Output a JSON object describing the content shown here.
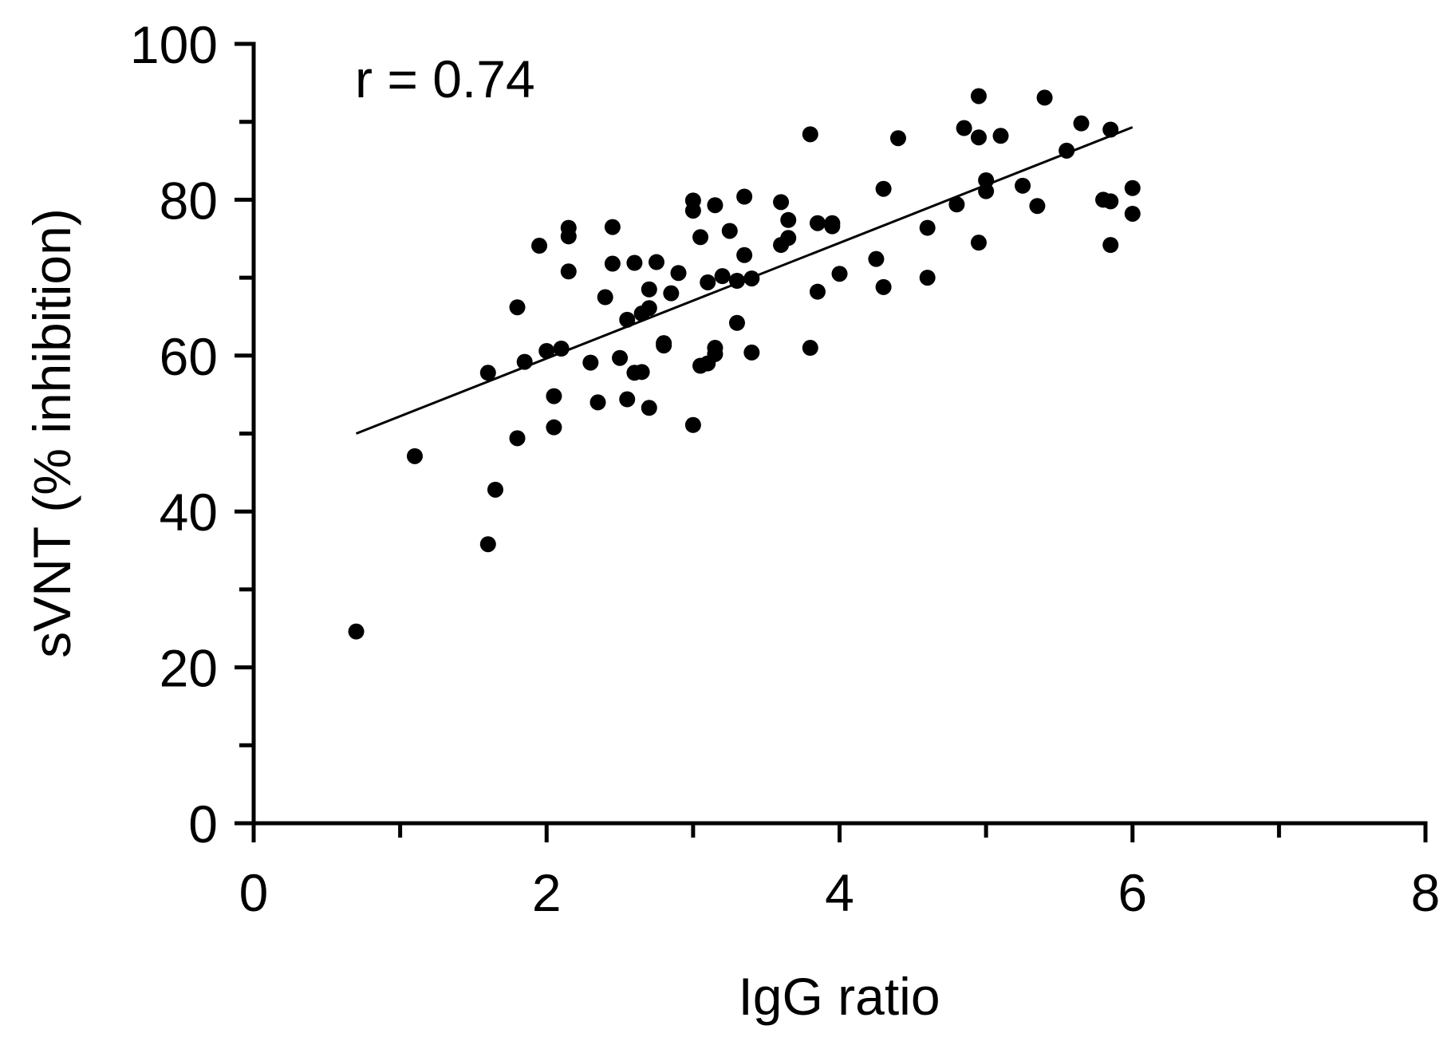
{
  "chart_data": {
    "type": "scatter",
    "title": "",
    "xlabel": "IgG ratio",
    "ylabel": "sVNT (% inhibition)",
    "xlim": [
      0,
      8
    ],
    "ylim": [
      0,
      100
    ],
    "x_ticks": [
      0,
      2,
      4,
      6,
      8
    ],
    "x_tick_labels": [
      "0",
      "2",
      "4",
      "6",
      "8"
    ],
    "x_minor_ticks": [
      1,
      3,
      5,
      7
    ],
    "y_ticks": [
      0,
      20,
      40,
      60,
      80,
      100
    ],
    "y_tick_labels": [
      "0",
      "20",
      "40",
      "60",
      "80",
      "100"
    ],
    "y_minor_ticks": [
      10,
      30,
      50,
      70,
      90
    ],
    "grid": false,
    "annotation": "r = 0.74",
    "fit_line": {
      "x": [
        0.7,
        6.0
      ],
      "y": [
        50,
        89.3
      ]
    },
    "series": [
      {
        "points": [
          [
            0.7,
            24.6
          ],
          [
            1.1,
            47.1
          ],
          [
            1.6,
            35.8
          ],
          [
            1.6,
            57.8
          ],
          [
            1.65,
            42.8
          ],
          [
            1.8,
            66.2
          ],
          [
            1.8,
            49.4
          ],
          [
            1.85,
            59.2
          ],
          [
            1.95,
            74.1
          ],
          [
            2.0,
            60.6
          ],
          [
            2.05,
            54.8
          ],
          [
            2.05,
            50.8
          ],
          [
            2.1,
            60.9
          ],
          [
            2.15,
            70.8
          ],
          [
            2.15,
            76.4
          ],
          [
            2.15,
            75.3
          ],
          [
            2.3,
            59.1
          ],
          [
            2.35,
            54.0
          ],
          [
            2.4,
            67.5
          ],
          [
            2.45,
            76.5
          ],
          [
            2.45,
            71.8
          ],
          [
            2.5,
            59.7
          ],
          [
            2.55,
            64.6
          ],
          [
            2.55,
            54.4
          ],
          [
            2.6,
            71.9
          ],
          [
            2.6,
            57.8
          ],
          [
            2.65,
            57.9
          ],
          [
            2.65,
            65.4
          ],
          [
            2.7,
            66.1
          ],
          [
            2.7,
            68.5
          ],
          [
            2.7,
            53.3
          ],
          [
            2.75,
            72.0
          ],
          [
            2.8,
            61.6
          ],
          [
            2.8,
            61.3
          ],
          [
            2.85,
            68.0
          ],
          [
            2.9,
            70.6
          ],
          [
            3.0,
            79.9
          ],
          [
            3.0,
            78.6
          ],
          [
            3.0,
            51.1
          ],
          [
            3.05,
            75.2
          ],
          [
            3.05,
            58.7
          ],
          [
            3.1,
            69.4
          ],
          [
            3.1,
            59.0
          ],
          [
            3.15,
            79.3
          ],
          [
            3.15,
            61.0
          ],
          [
            3.15,
            60.2
          ],
          [
            3.2,
            70.2
          ],
          [
            3.25,
            76.0
          ],
          [
            3.3,
            64.2
          ],
          [
            3.3,
            69.6
          ],
          [
            3.35,
            72.9
          ],
          [
            3.35,
            80.4
          ],
          [
            3.4,
            69.9
          ],
          [
            3.4,
            60.4
          ],
          [
            3.6,
            79.7
          ],
          [
            3.6,
            74.2
          ],
          [
            3.65,
            75.1
          ],
          [
            3.65,
            77.4
          ],
          [
            3.8,
            88.4
          ],
          [
            3.8,
            61.0
          ],
          [
            3.85,
            68.2
          ],
          [
            3.85,
            77.0
          ],
          [
            3.95,
            76.6
          ],
          [
            3.95,
            77.0
          ],
          [
            4.0,
            70.5
          ],
          [
            4.25,
            72.4
          ],
          [
            4.3,
            68.8
          ],
          [
            4.3,
            81.4
          ],
          [
            4.4,
            87.9
          ],
          [
            4.6,
            76.4
          ],
          [
            4.6,
            70.0
          ],
          [
            4.8,
            79.4
          ],
          [
            4.85,
            89.2
          ],
          [
            4.95,
            93.3
          ],
          [
            4.95,
            88.0
          ],
          [
            4.95,
            74.5
          ],
          [
            5.0,
            82.5
          ],
          [
            5.0,
            81.1
          ],
          [
            5.1,
            88.2
          ],
          [
            5.25,
            81.8
          ],
          [
            5.35,
            79.2
          ],
          [
            5.4,
            93.1
          ],
          [
            5.55,
            86.3
          ],
          [
            5.65,
            89.8
          ],
          [
            5.8,
            80.0
          ],
          [
            5.85,
            79.8
          ],
          [
            5.85,
            89.0
          ],
          [
            5.85,
            74.2
          ],
          [
            6.0,
            81.5
          ],
          [
            6.0,
            78.2
          ]
        ]
      }
    ]
  }
}
